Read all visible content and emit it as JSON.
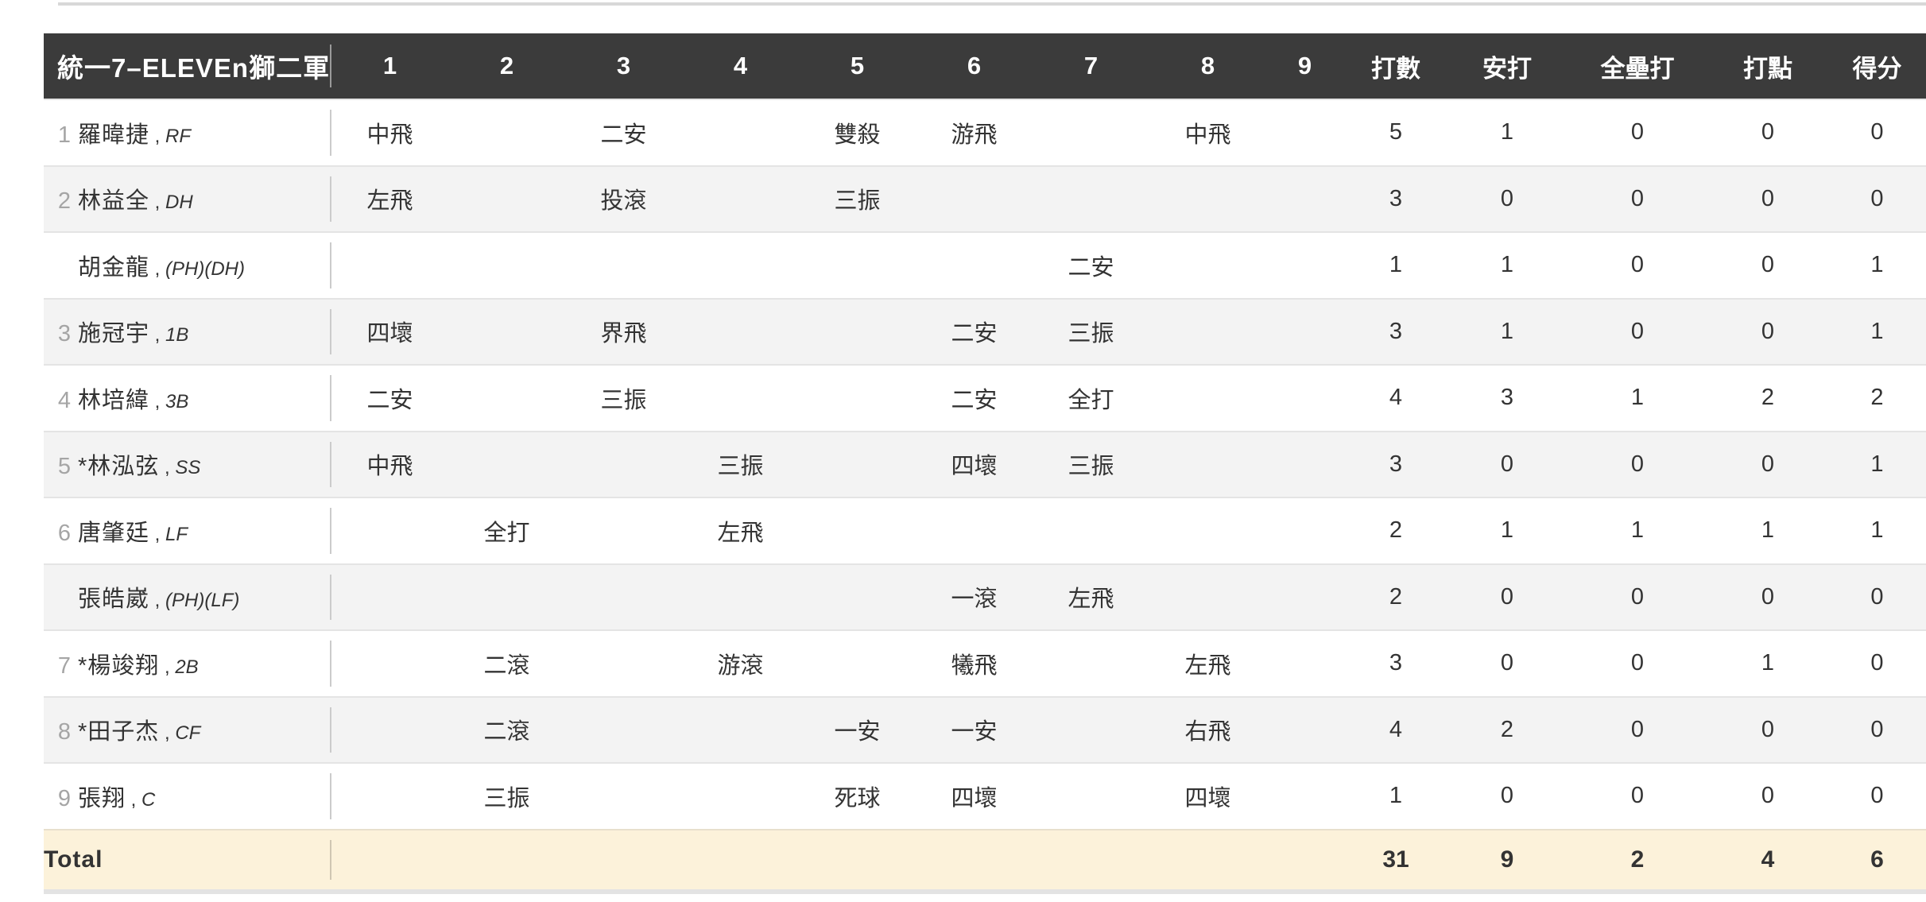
{
  "header": {
    "team": "統一7–ELEVEn獅二軍",
    "cols": [
      "1",
      "2",
      "3",
      "4",
      "5",
      "6",
      "7",
      "8",
      "9",
      "打數",
      "安打",
      "全壘打",
      "打點",
      "得分"
    ]
  },
  "players": [
    {
      "order": "1",
      "name": "羅暐捷",
      "pos": "RF",
      "innings": [
        "中飛",
        "",
        "二安",
        "",
        "雙殺",
        "游飛",
        "",
        "中飛",
        ""
      ],
      "stats": [
        "5",
        "1",
        "0",
        "0",
        "0"
      ]
    },
    {
      "order": "2",
      "name": "林益全",
      "pos": "DH",
      "innings": [
        "左飛",
        "",
        "投滾",
        "",
        "三振",
        "",
        "",
        "",
        ""
      ],
      "stats": [
        "3",
        "0",
        "0",
        "0",
        "0"
      ]
    },
    {
      "order": "",
      "name": "胡金龍",
      "pos": "(PH)(DH)",
      "innings": [
        "",
        "",
        "",
        "",
        "",
        "",
        "二安",
        "",
        ""
      ],
      "stats": [
        "1",
        "1",
        "0",
        "0",
        "1"
      ]
    },
    {
      "order": "3",
      "name": "施冠宇",
      "pos": "1B",
      "innings": [
        "四壞",
        "",
        "界飛",
        "",
        "",
        "二安",
        "三振",
        "",
        ""
      ],
      "stats": [
        "3",
        "1",
        "0",
        "0",
        "1"
      ]
    },
    {
      "order": "4",
      "name": "林培緯",
      "pos": "3B",
      "innings": [
        "二安",
        "",
        "三振",
        "",
        "",
        "二安",
        "全打",
        "",
        ""
      ],
      "stats": [
        "4",
        "3",
        "1",
        "2",
        "2"
      ]
    },
    {
      "order": "5",
      "name": "*林泓弦",
      "pos": "SS",
      "innings": [
        "中飛",
        "",
        "",
        "三振",
        "",
        "四壞",
        "三振",
        "",
        ""
      ],
      "stats": [
        "3",
        "0",
        "0",
        "0",
        "1"
      ]
    },
    {
      "order": "6",
      "name": "唐肇廷",
      "pos": "LF",
      "innings": [
        "",
        "全打",
        "",
        "左飛",
        "",
        "",
        "",
        "",
        ""
      ],
      "stats": [
        "2",
        "1",
        "1",
        "1",
        "1"
      ]
    },
    {
      "order": "",
      "name": "張皓崴",
      "pos": "(PH)(LF)",
      "innings": [
        "",
        "",
        "",
        "",
        "",
        "一滾",
        "左飛",
        "",
        ""
      ],
      "stats": [
        "2",
        "0",
        "0",
        "0",
        "0"
      ]
    },
    {
      "order": "7",
      "name": "*楊竣翔",
      "pos": "2B",
      "innings": [
        "",
        "二滾",
        "",
        "游滾",
        "",
        "犧飛",
        "",
        "左飛",
        ""
      ],
      "stats": [
        "3",
        "0",
        "0",
        "1",
        "0"
      ]
    },
    {
      "order": "8",
      "name": "*田子杰",
      "pos": "CF",
      "innings": [
        "",
        "二滾",
        "",
        "",
        "一安",
        "一安",
        "",
        "右飛",
        ""
      ],
      "stats": [
        "4",
        "2",
        "0",
        "0",
        "0"
      ]
    },
    {
      "order": "9",
      "name": "張翔",
      "pos": "C",
      "innings": [
        "",
        "三振",
        "",
        "",
        "死球",
        "四壞",
        "",
        "四壞",
        ""
      ],
      "stats": [
        "1",
        "0",
        "0",
        "0",
        "0"
      ]
    }
  ],
  "total": {
    "label": "Total",
    "values": [
      "31",
      "9",
      "2",
      "4",
      "6"
    ]
  }
}
